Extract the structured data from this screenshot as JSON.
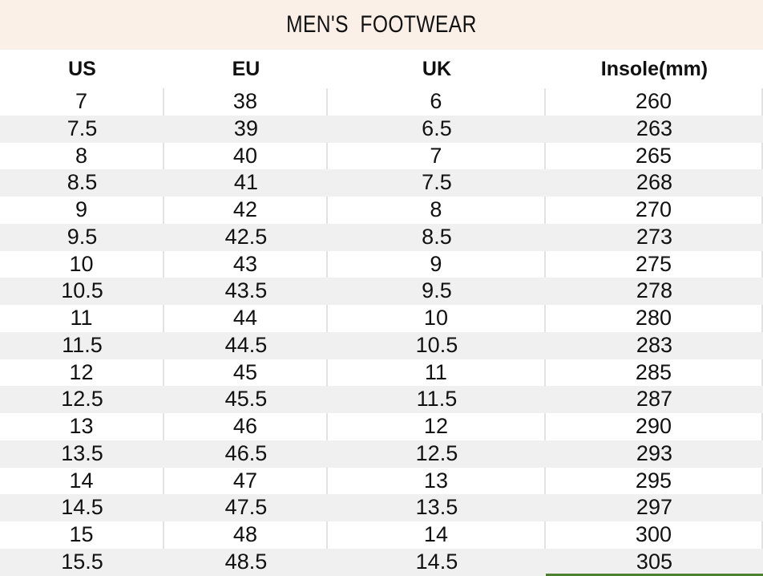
{
  "page": {
    "title": "MEN'S  FOOTWEAR"
  },
  "chart_data": {
    "type": "table",
    "title": "MEN'S  FOOTWEAR",
    "columns": [
      "US",
      "EU",
      "UK",
      "Insole(mm)"
    ],
    "rows": [
      [
        "7",
        "38",
        "6",
        "260"
      ],
      [
        "7.5",
        "39",
        "6.5",
        "263"
      ],
      [
        "8",
        "40",
        "7",
        "265"
      ],
      [
        "8.5",
        "41",
        "7.5",
        "268"
      ],
      [
        "9",
        "42",
        "8",
        "270"
      ],
      [
        "9.5",
        "42.5",
        "8.5",
        "273"
      ],
      [
        "10",
        "43",
        "9",
        "275"
      ],
      [
        "10.5",
        "43.5",
        "9.5",
        "278"
      ],
      [
        "11",
        "44",
        "10",
        "280"
      ],
      [
        "11.5",
        "44.5",
        "10.5",
        "283"
      ],
      [
        "12",
        "45",
        "11",
        "285"
      ],
      [
        "12.5",
        "45.5",
        "11.5",
        "287"
      ],
      [
        "13",
        "46",
        "12",
        "290"
      ],
      [
        "13.5",
        "46.5",
        "12.5",
        "293"
      ],
      [
        "14",
        "47",
        "13",
        "295"
      ],
      [
        "14.5",
        "47.5",
        "13.5",
        "297"
      ],
      [
        "15",
        "48",
        "14",
        "300"
      ],
      [
        "15.5",
        "48.5",
        "14.5",
        "305"
      ]
    ],
    "layout": {
      "alternating_rows": true,
      "column_dividers_on_white_rows": true
    }
  },
  "colors": {
    "banner_bg": "#faf0e8",
    "row_alt_bg": "#f0f0f0",
    "divider": "#e2e2e2",
    "text": "#111111",
    "accent_underline": "#4e8031"
  }
}
